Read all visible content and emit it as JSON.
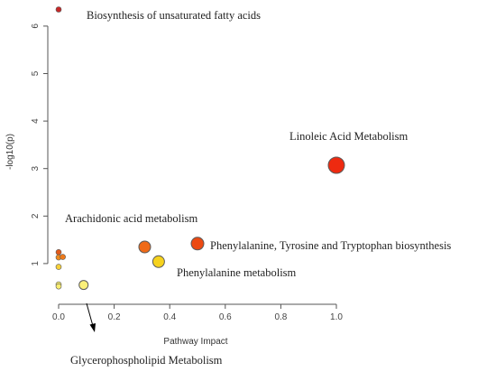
{
  "chart_data": {
    "type": "scatter",
    "title": "",
    "xlabel": "Pathway Impact",
    "ylabel": "-log10(p)",
    "xlim": [
      0.0,
      1.0
    ],
    "ylim": [
      0.4,
      6.4
    ],
    "xticks": [
      "0.0",
      "0.2",
      "0.4",
      "0.6",
      "0.8",
      "1.0"
    ],
    "yticks": [
      "1",
      "2",
      "3",
      "4",
      "5",
      "6"
    ],
    "grid": false,
    "points": [
      {
        "x": 0.0,
        "y": 6.35,
        "color": "#c62828",
        "size": 3
      },
      {
        "x": 1.0,
        "y": 3.07,
        "color": "#ee2a10",
        "size": 9
      },
      {
        "x": 0.5,
        "y": 1.42,
        "color": "#ec4a12",
        "size": 7
      },
      {
        "x": 0.31,
        "y": 1.35,
        "color": "#ef6a18",
        "size": 6.5
      },
      {
        "x": 0.36,
        "y": 1.04,
        "color": "#f6d21e",
        "size": 6.5
      },
      {
        "x": 0.09,
        "y": 0.55,
        "color": "#fbf07a",
        "size": 5
      },
      {
        "x": 0.0,
        "y": 1.24,
        "color": "#e45a1a",
        "size": 3
      },
      {
        "x": 0.0,
        "y": 1.13,
        "color": "#f08a1c",
        "size": 3
      },
      {
        "x": 0.015,
        "y": 1.14,
        "color": "#ef7a1a",
        "size": 3
      },
      {
        "x": 0.0,
        "y": 0.93,
        "color": "#f6d03a",
        "size": 3
      },
      {
        "x": 0.0,
        "y": 0.56,
        "color": "#fbef70",
        "size": 3
      },
      {
        "x": 0.0,
        "y": 0.52,
        "color": "#fbef70",
        "size": 3
      }
    ],
    "annotations": [
      "Biosynthesis of unsaturated fatty acids",
      "Linoleic Acid Metabolism",
      "Arachidonic acid metabolism",
      "Phenylalanine, Tyrosine and Tryptophan biosynthesis",
      "Phenylalanine metabolism",
      "Glycerophospholipid  Metabolism"
    ]
  }
}
